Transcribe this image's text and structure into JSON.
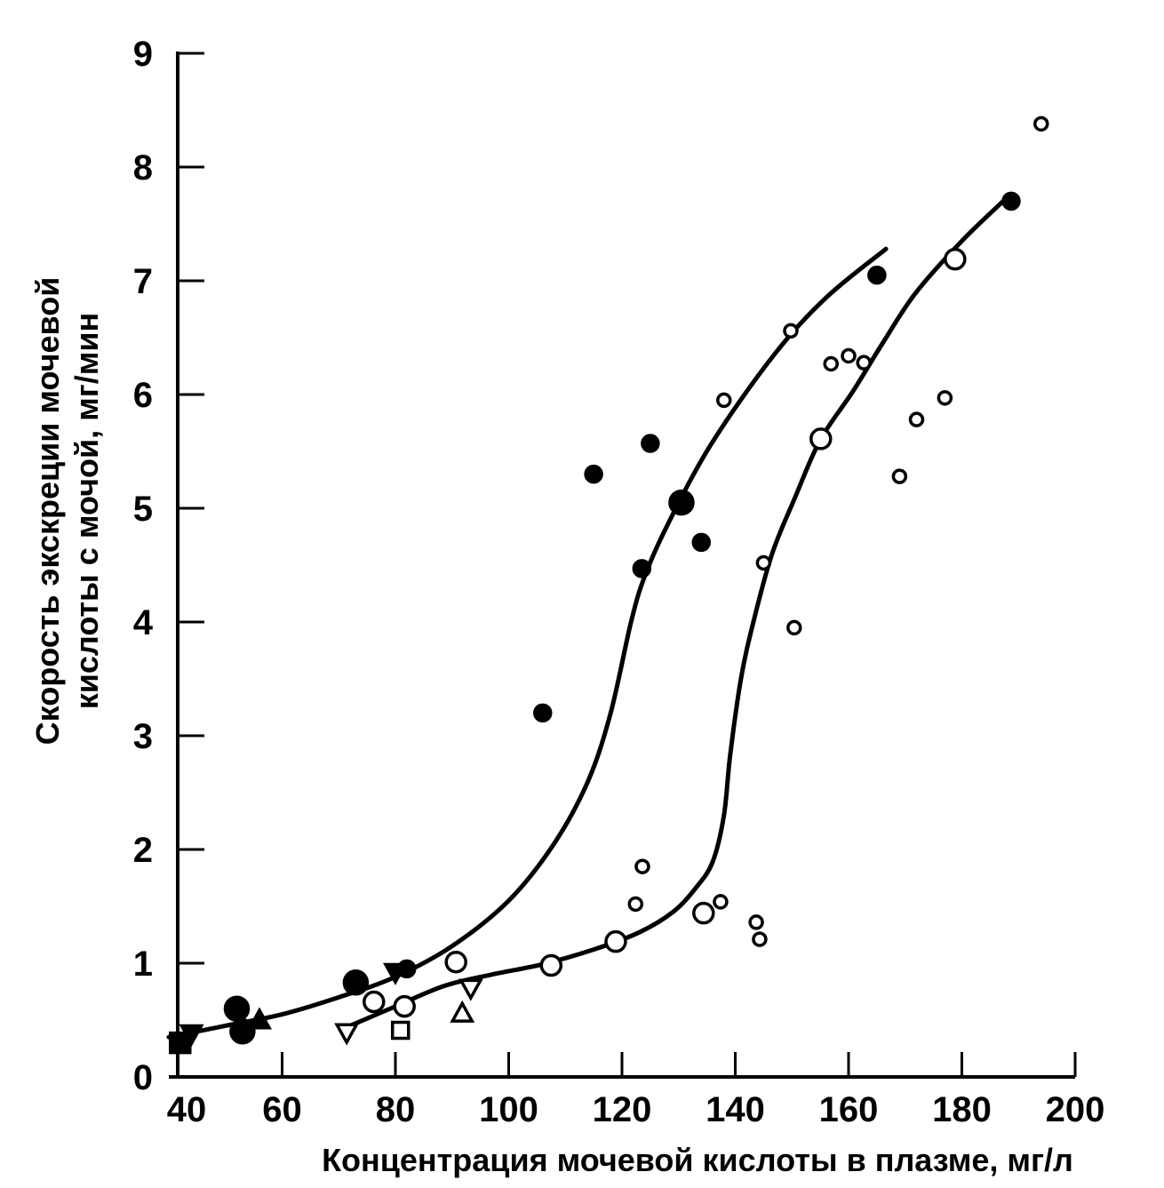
{
  "chart_data": {
    "type": "scatter",
    "xlabel": "Концентрация мочевой кислоты в плазме, мг/л",
    "ylabel_line1": "Скорость экскреции мочевой",
    "ylabel_line2": "кислоты с мочой, мг/мин",
    "xlim": [
      40,
      200
    ],
    "ylim": [
      0,
      9
    ],
    "x_ticks": [
      40,
      60,
      80,
      100,
      120,
      140,
      160,
      180,
      200
    ],
    "y_ticks": [
      0,
      1,
      2,
      3,
      4,
      5,
      6,
      7,
      8,
      9
    ],
    "grid": false,
    "series": [
      {
        "marker": "filled",
        "points": [
          {
            "x": 42,
            "y": 0.3,
            "shape": "square"
          },
          {
            "x": 44,
            "y": 0.38,
            "shape": "triangle-down"
          },
          {
            "x": 52,
            "y": 0.6,
            "shape": "circle-large"
          },
          {
            "x": 53,
            "y": 0.4,
            "shape": "circle-large"
          },
          {
            "x": 56,
            "y": 0.5,
            "shape": "triangle-up"
          },
          {
            "x": 73,
            "y": 0.83,
            "shape": "circle-large"
          },
          {
            "x": 80,
            "y": 0.92,
            "shape": "triangle-down"
          },
          {
            "x": 82,
            "y": 0.95,
            "shape": "circle"
          },
          {
            "x": 106,
            "y": 3.2,
            "shape": "circle"
          },
          {
            "x": 115,
            "y": 5.3,
            "shape": "circle"
          },
          {
            "x": 123.5,
            "y": 4.47,
            "shape": "circle"
          },
          {
            "x": 125,
            "y": 5.57,
            "shape": "circle"
          },
          {
            "x": 130.5,
            "y": 5.05,
            "shape": "circle-large"
          },
          {
            "x": 134,
            "y": 4.7,
            "shape": "circle"
          },
          {
            "x": 165,
            "y": 7.05,
            "shape": "circle"
          },
          {
            "x": 188.7,
            "y": 7.7,
            "shape": "circle"
          }
        ]
      },
      {
        "marker": "open",
        "points": [
          {
            "x": 76.2,
            "y": 0.66,
            "shape": "circle-large"
          },
          {
            "x": 81.6,
            "y": 0.62,
            "shape": "circle-large"
          },
          {
            "x": 90.7,
            "y": 1.01,
            "shape": "circle-large"
          },
          {
            "x": 107.5,
            "y": 0.98,
            "shape": "circle-large"
          },
          {
            "x": 118.9,
            "y": 1.19,
            "shape": "circle-large"
          },
          {
            "x": 134.4,
            "y": 1.44,
            "shape": "circle-large"
          },
          {
            "x": 155.1,
            "y": 5.61,
            "shape": "circle-large"
          },
          {
            "x": 178.8,
            "y": 7.19,
            "shape": "circle-large"
          },
          {
            "x": 71.4,
            "y": 0.39,
            "shape": "triangle-down"
          },
          {
            "x": 80.9,
            "y": 0.41,
            "shape": "square"
          },
          {
            "x": 91.8,
            "y": 0.56,
            "shape": "triangle-up"
          },
          {
            "x": 93.3,
            "y": 0.78,
            "shape": "triangle-down"
          },
          {
            "x": 122.4,
            "y": 1.52,
            "shape": "circle"
          },
          {
            "x": 123.6,
            "y": 1.85,
            "shape": "circle"
          },
          {
            "x": 137.4,
            "y": 1.54,
            "shape": "circle"
          },
          {
            "x": 143.7,
            "y": 1.36,
            "shape": "circle"
          },
          {
            "x": 144.3,
            "y": 1.21,
            "shape": "circle"
          },
          {
            "x": 145,
            "y": 4.52,
            "shape": "circle"
          },
          {
            "x": 150.4,
            "y": 3.95,
            "shape": "circle"
          },
          {
            "x": 138,
            "y": 5.95,
            "shape": "circle"
          },
          {
            "x": 149.8,
            "y": 6.56,
            "shape": "circle"
          },
          {
            "x": 156.9,
            "y": 6.27,
            "shape": "circle"
          },
          {
            "x": 160,
            "y": 6.34,
            "shape": "circle"
          },
          {
            "x": 162.7,
            "y": 6.28,
            "shape": "circle"
          },
          {
            "x": 169,
            "y": 5.28,
            "shape": "circle"
          },
          {
            "x": 172,
            "y": 5.78,
            "shape": "circle"
          },
          {
            "x": 177,
            "y": 5.97,
            "shape": "circle"
          },
          {
            "x": 194,
            "y": 8.38,
            "shape": "circle"
          }
        ]
      }
    ],
    "curves": [
      {
        "points": [
          [
            40,
            0.35
          ],
          [
            50,
            0.45
          ],
          [
            60,
            0.55
          ],
          [
            70,
            0.7
          ],
          [
            80,
            0.88
          ],
          [
            90,
            1.15
          ],
          [
            100,
            1.55
          ],
          [
            108,
            2.05
          ],
          [
            114,
            2.6
          ],
          [
            118,
            3.2
          ],
          [
            121.6,
            4.0
          ],
          [
            124,
            4.4
          ],
          [
            128,
            4.85
          ],
          [
            135.7,
            5.56
          ],
          [
            146.7,
            6.34
          ],
          [
            156,
            6.85
          ],
          [
            166.6,
            7.28
          ]
        ]
      },
      {
        "points": [
          [
            72,
            0.45
          ],
          [
            80,
            0.62
          ],
          [
            88.6,
            0.8
          ],
          [
            97,
            0.9
          ],
          [
            105.9,
            0.99
          ],
          [
            115,
            1.12
          ],
          [
            123,
            1.27
          ],
          [
            129,
            1.45
          ],
          [
            133,
            1.66
          ],
          [
            136,
            1.89
          ],
          [
            138,
            2.3
          ],
          [
            139.1,
            2.83
          ],
          [
            141,
            3.5
          ],
          [
            143.2,
            4.0
          ],
          [
            146.5,
            4.6
          ],
          [
            150.6,
            5.1
          ],
          [
            155,
            5.6
          ],
          [
            160.8,
            6.03
          ],
          [
            166,
            6.45
          ],
          [
            171.8,
            6.89
          ],
          [
            180,
            7.35
          ],
          [
            187.5,
            7.71
          ]
        ]
      }
    ]
  }
}
